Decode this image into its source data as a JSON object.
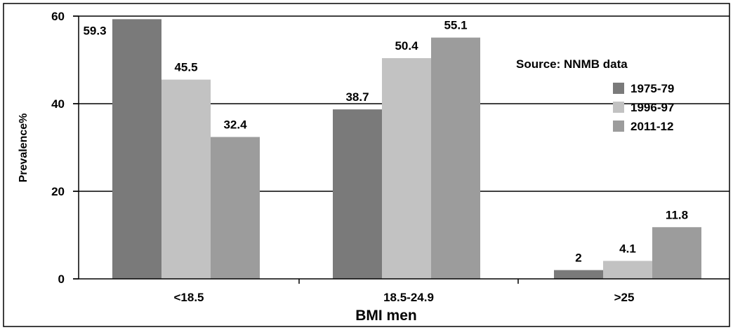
{
  "chart_data": {
    "type": "bar",
    "title": "",
    "xlabel": "BMI men",
    "ylabel": "Prevalence%",
    "ylim": [
      0,
      60
    ],
    "yticks": [
      0,
      20,
      40,
      60
    ],
    "grid": true,
    "legend_position": "right",
    "annotation": "Source: NNMB data",
    "categories": [
      "<18.5",
      "18.5-24.9",
      ">25"
    ],
    "series": [
      {
        "name": "1975-79",
        "color": "#7a7a7a",
        "values": [
          59.3,
          38.7,
          2
        ]
      },
      {
        "name": "1996-97",
        "color": "#c2c2c2",
        "values": [
          45.5,
          50.4,
          4.1
        ]
      },
      {
        "name": "2011-12",
        "color": "#9c9c9c",
        "values": [
          32.4,
          55.1,
          11.8
        ]
      }
    ]
  }
}
